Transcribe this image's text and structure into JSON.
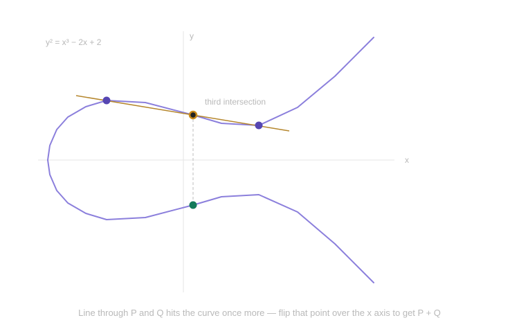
{
  "equation": "y² = x³ − 2x + 2",
  "axes": {
    "x_label": "x",
    "y_label": "y"
  },
  "annotation": "third intersection",
  "caption": "Line through P and Q hits the curve once more — flip that point over the x axis to get P + Q",
  "colors": {
    "curve": "#8b7fdc",
    "secant": "#b5862c",
    "axis": "#e4e4e4",
    "guide": "#bdbdbd",
    "point_pq": "#5646b2",
    "third_point": "#222222",
    "third_ring": "#c98a1c",
    "sum_point": "#137a5a",
    "label": "#b9b9b9"
  }
}
